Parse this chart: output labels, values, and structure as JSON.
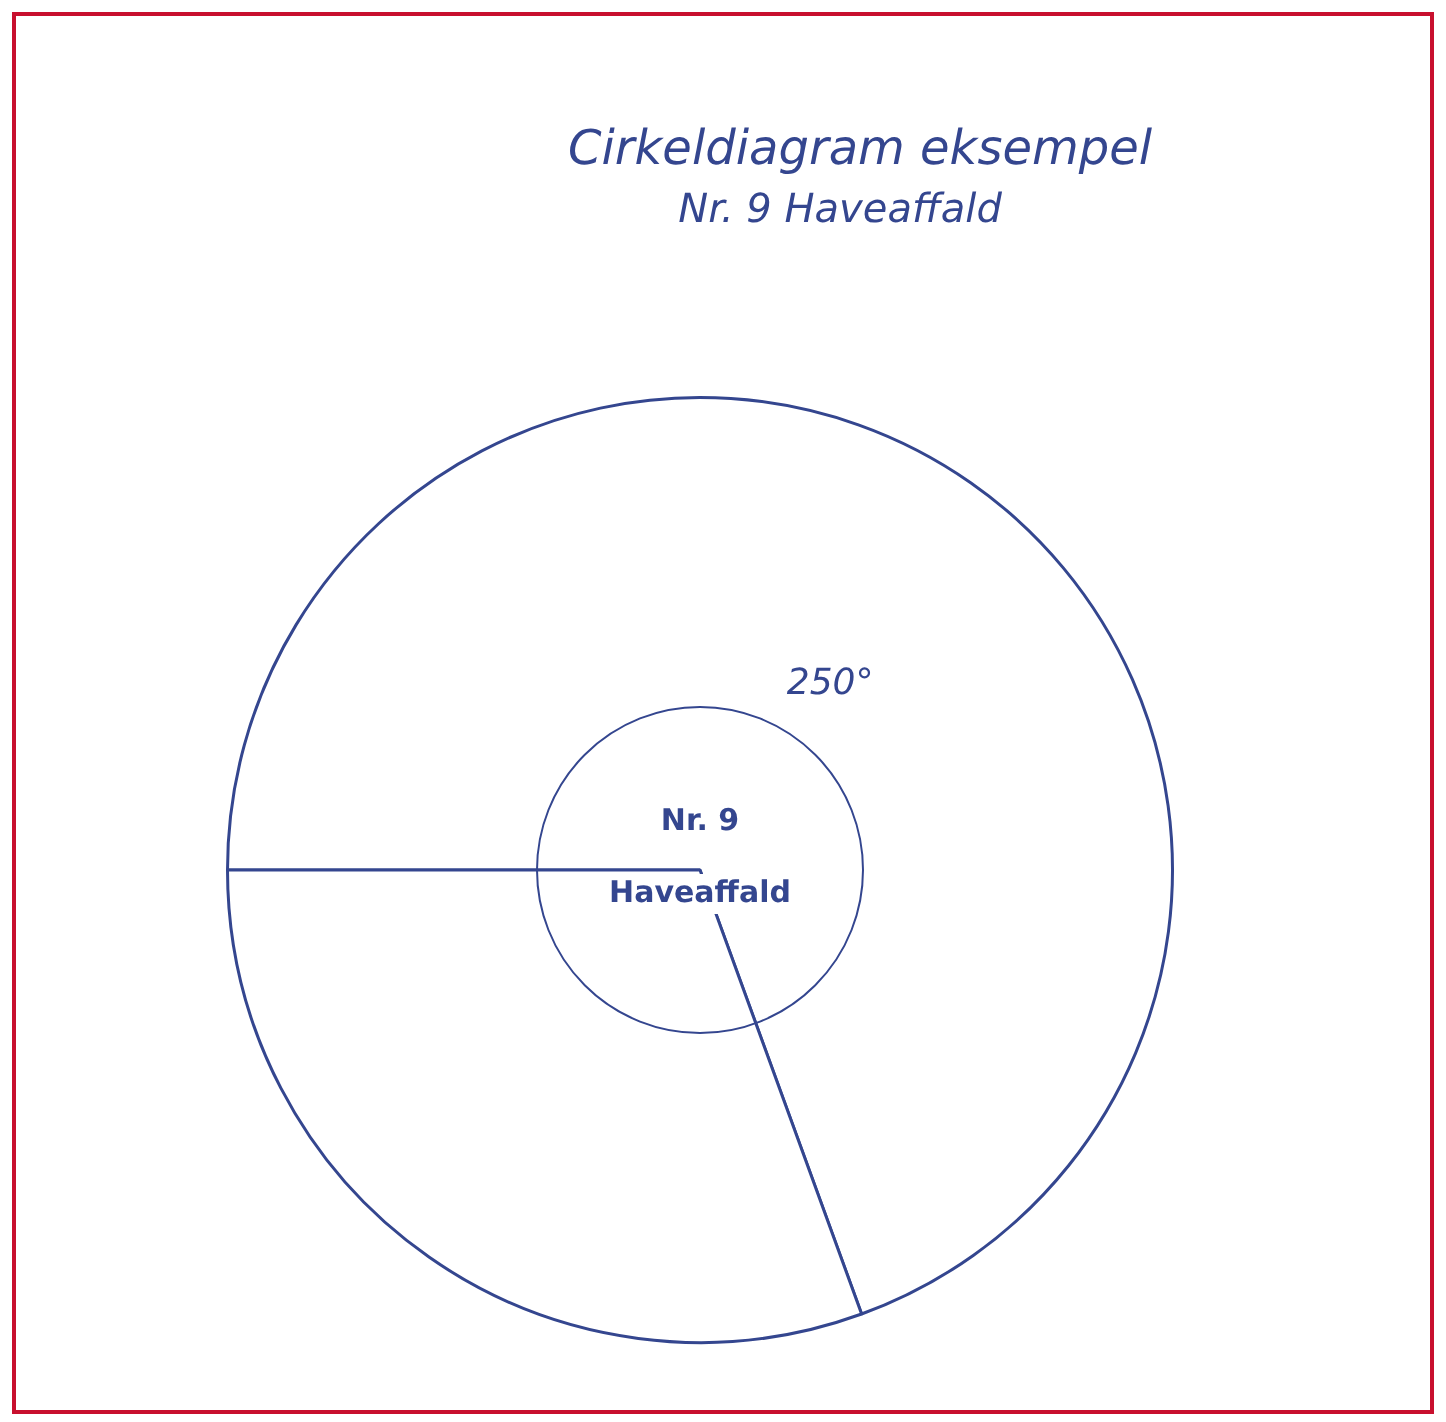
{
  "chart_data": {
    "type": "pie",
    "title": "Cirkeldiagram eksempel",
    "subtitle": "Nr. 9 Haveaffald",
    "categories": [
      "Nr. 9 Haveaffald",
      null
    ],
    "values": [
      250,
      110
    ],
    "colors": [
      "#ffffff",
      "#ffffff"
    ],
    "value_labels": [
      "250°",
      null
    ],
    "legend": false
  }
}
